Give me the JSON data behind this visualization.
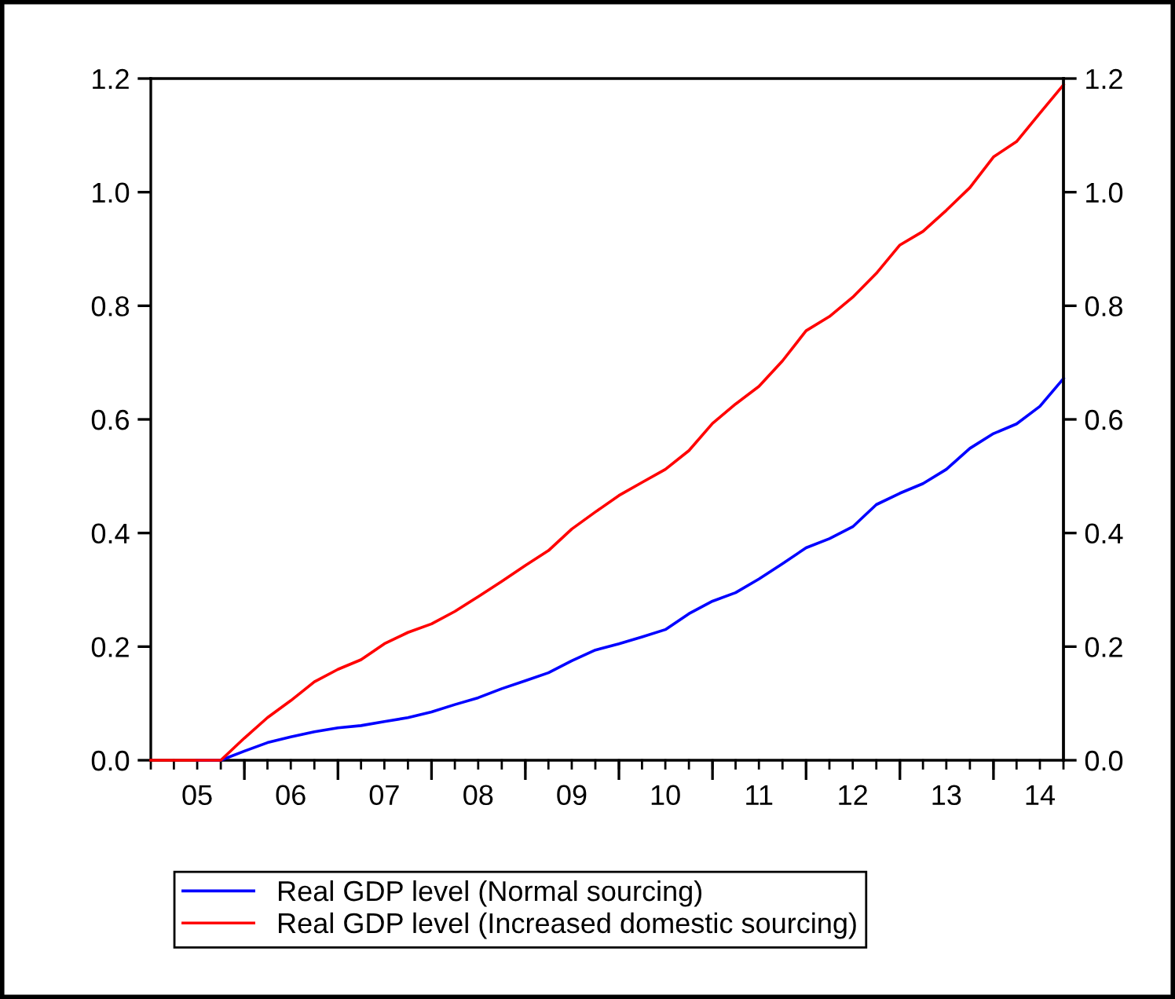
{
  "chart_data": {
    "type": "line",
    "x": [
      "2005-01",
      "2005-04",
      "2005-07",
      "2005-10",
      "2006-01",
      "2006-04",
      "2006-07",
      "2006-10",
      "2007-01",
      "2007-04",
      "2007-07",
      "2007-10",
      "2008-01",
      "2008-04",
      "2008-07",
      "2008-10",
      "2009-01",
      "2009-04",
      "2009-07",
      "2009-10",
      "2010-01",
      "2010-04",
      "2010-07",
      "2010-10",
      "2011-01",
      "2011-04",
      "2011-07",
      "2011-10",
      "2012-01",
      "2012-04",
      "2012-07",
      "2012-10",
      "2013-01",
      "2013-04",
      "2013-07",
      "2013-10",
      "2014-01",
      "2014-04",
      "2014-07",
      "2014-10"
    ],
    "series": [
      {
        "name": "Real GDP level (Normal sourcing)",
        "color": "#0000ff",
        "values": [
          null,
          null,
          0,
          0,
          0.016,
          0.031,
          0.041,
          0.05,
          0.057,
          0.061,
          0.068,
          0.075,
          0.085,
          0.098,
          0.11,
          0.126,
          0.14,
          0.154,
          0.175,
          0.194,
          0.205,
          0.217,
          0.23,
          0.258,
          0.28,
          0.295,
          0.319,
          0.346,
          0.374,
          0.39,
          0.411,
          0.45,
          0.47,
          0.487,
          0.512,
          0.549,
          0.575,
          0.592,
          0.623,
          0.672
        ]
      },
      {
        "name": "Real GDP level (Increased domestic sourcing)",
        "color": "#ff0000",
        "values": [
          0,
          0,
          0,
          0,
          0.039,
          0.075,
          0.105,
          0.138,
          0.16,
          0.177,
          0.205,
          0.225,
          0.24,
          0.262,
          0.288,
          0.315,
          0.343,
          0.369,
          0.407,
          0.437,
          0.466,
          0.489,
          0.512,
          0.545,
          0.593,
          0.627,
          0.658,
          0.703,
          0.756,
          0.781,
          0.815,
          0.857,
          0.907,
          0.931,
          0.968,
          1.008,
          1.062,
          1.089,
          1.139,
          1.189
        ]
      }
    ],
    "xlim": [
      "2005-01",
      "2014-10"
    ],
    "xticks": [
      {
        "value": "2005-07",
        "label": "05"
      },
      {
        "value": "2006-01",
        "label": null
      },
      {
        "value": "2006-07",
        "label": "06"
      },
      {
        "value": "2007-01",
        "label": null
      },
      {
        "value": "2007-07",
        "label": "07"
      },
      {
        "value": "2008-01",
        "label": null
      },
      {
        "value": "2008-07",
        "label": "08"
      },
      {
        "value": "2009-01",
        "label": null
      },
      {
        "value": "2009-07",
        "label": "09"
      },
      {
        "value": "2010-01",
        "label": null
      },
      {
        "value": "2010-07",
        "label": "10"
      },
      {
        "value": "2011-01",
        "label": null
      },
      {
        "value": "2011-07",
        "label": "11"
      },
      {
        "value": "2012-01",
        "label": null
      },
      {
        "value": "2012-07",
        "label": "12"
      },
      {
        "value": "2013-01",
        "label": null
      },
      {
        "value": "2013-07",
        "label": "13"
      },
      {
        "value": "2014-01",
        "label": null
      },
      {
        "value": "2014-07",
        "label": "14"
      }
    ],
    "ylim": [
      0,
      1.2
    ],
    "yticks": [
      {
        "value": 0,
        "label": "0.0"
      },
      {
        "value": 0.2,
        "label": "0.2"
      },
      {
        "value": 0.4,
        "label": "0.4"
      },
      {
        "value": 0.6,
        "label": "0.6"
      },
      {
        "value": 0.8,
        "label": "0.8"
      },
      {
        "value": 1.0,
        "label": "1.0"
      },
      {
        "value": 1.2,
        "label": "1.2"
      }
    ],
    "y2lim": [
      0,
      1.2
    ],
    "y2ticks": [
      {
        "value": 0,
        "label": "0.0"
      },
      {
        "value": 0.2,
        "label": "0.2"
      },
      {
        "value": 0.4,
        "label": "0.4"
      },
      {
        "value": 0.6,
        "label": "0.6"
      },
      {
        "value": 0.8,
        "label": "0.8"
      },
      {
        "value": 1.0,
        "label": "1.0"
      },
      {
        "value": 1.2,
        "label": "1.2"
      }
    ],
    "legend": "bottom",
    "grid": false,
    "line_style": "solid"
  }
}
